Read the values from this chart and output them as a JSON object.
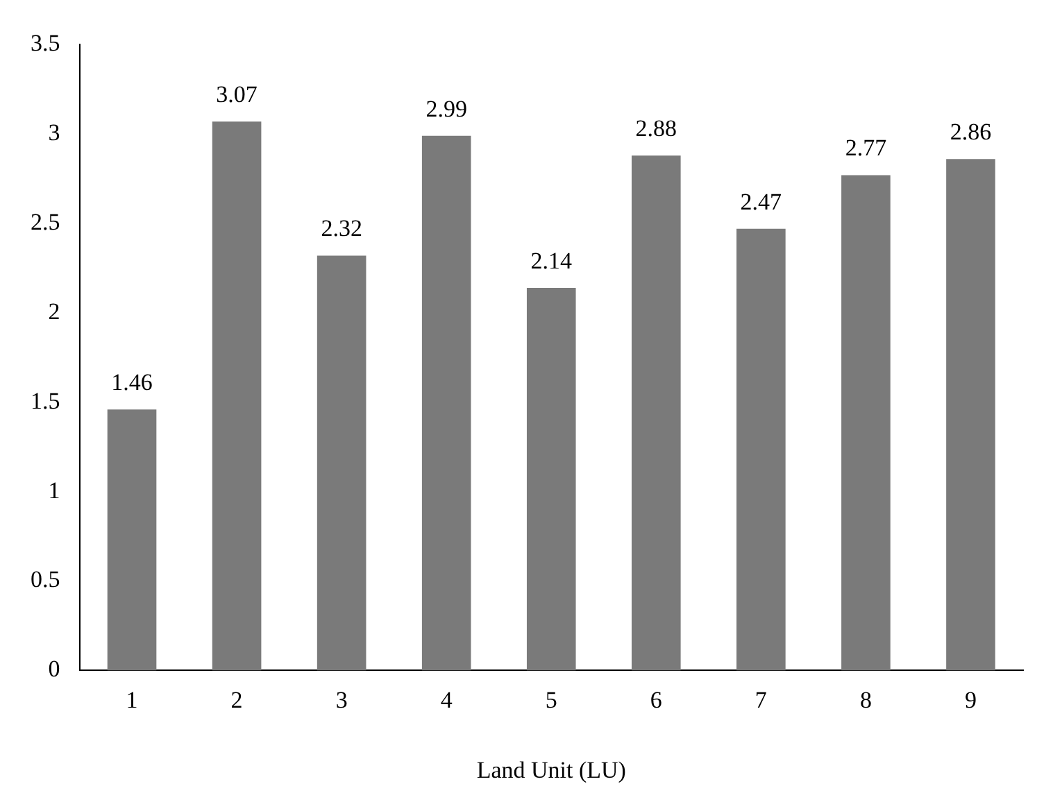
{
  "chart_data": {
    "type": "bar",
    "xlabel": "Land Unit (LU)",
    "categories": [
      "1",
      "2",
      "3",
      "4",
      "5",
      "6",
      "7",
      "8",
      "9"
    ],
    "values": [
      1.46,
      3.07,
      2.32,
      2.99,
      2.14,
      2.88,
      2.47,
      2.77,
      2.86
    ],
    "color": "#7a7a7a",
    "ylim": [
      0,
      3.5
    ],
    "yticks": [
      0,
      0.5,
      1,
      1.5,
      2,
      2.5,
      3,
      3.5
    ],
    "grid": false,
    "legend": false,
    "data_labels": true
  }
}
